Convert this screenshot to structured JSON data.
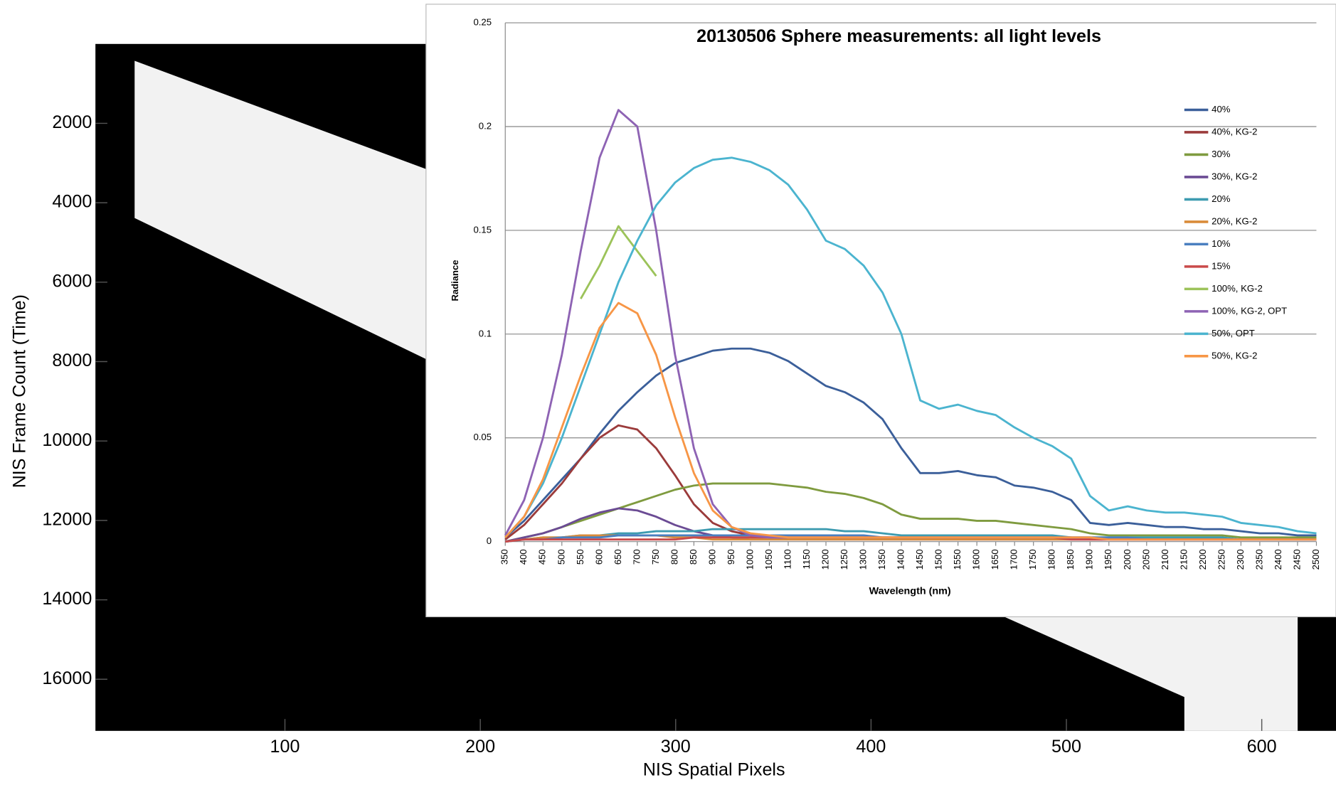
{
  "chart_data": [
    {
      "type": "image",
      "x_label": "NIS Spatial Pixels",
      "y_label": "NIS Frame Count (Time)",
      "xlim": [
        3,
        638
      ],
      "xticks": [
        100,
        200,
        300,
        400,
        500,
        600
      ],
      "ylim": [
        0,
        17300
      ],
      "yticks": [
        2000,
        4000,
        6000,
        8000,
        10000,
        12000,
        14000,
        16000
      ],
      "y_inverted": true
    },
    {
      "type": "line",
      "title": "20130506 Sphere measurements: all light levels",
      "x_label": "Wavelength (nm)",
      "y_label": "Radiance",
      "xlim": [
        350,
        2500
      ],
      "xticks": [
        350,
        400,
        450,
        500,
        550,
        600,
        650,
        700,
        750,
        800,
        850,
        900,
        950,
        1000,
        1050,
        1100,
        1150,
        1200,
        1250,
        1300,
        1350,
        1400,
        1450,
        1500,
        1550,
        1600,
        1650,
        1700,
        1750,
        1800,
        1850,
        1900,
        1950,
        2000,
        2050,
        2100,
        2150,
        2200,
        2250,
        2300,
        2350,
        2400,
        2450,
        2500
      ],
      "ylim": [
        0,
        0.25
      ],
      "yticks": [
        0,
        0.05,
        0.1,
        0.15,
        0.2,
        0.25
      ],
      "grid": true,
      "legend": "right",
      "x": [
        350,
        400,
        450,
        500,
        550,
        600,
        650,
        700,
        750,
        800,
        850,
        900,
        950,
        1000,
        1050,
        1100,
        1150,
        1200,
        1250,
        1300,
        1350,
        1400,
        1450,
        1500,
        1550,
        1600,
        1650,
        1700,
        1750,
        1800,
        1850,
        1900,
        1950,
        2000,
        2050,
        2100,
        2150,
        2200,
        2250,
        2300,
        2350,
        2400,
        2450,
        2500
      ],
      "series": [
        {
          "name": "40%",
          "color": "#3b5f9a",
          "values": [
            0.002,
            0.01,
            0.02,
            0.03,
            0.04,
            0.052,
            0.063,
            0.072,
            0.08,
            0.086,
            0.089,
            0.092,
            0.093,
            0.093,
            0.091,
            0.087,
            0.081,
            0.075,
            0.072,
            0.067,
            0.059,
            0.045,
            0.033,
            0.033,
            0.034,
            0.032,
            0.031,
            0.027,
            0.026,
            0.024,
            0.02,
            0.009,
            0.008,
            0.009,
            0.008,
            0.007,
            0.007,
            0.006,
            0.006,
            0.005,
            0.004,
            0.004,
            0.003,
            0.003
          ]
        },
        {
          "name": "40%, KG-2",
          "color": "#9b3b3b",
          "values": [
            0.001,
            0.008,
            0.018,
            0.028,
            0.04,
            0.05,
            0.056,
            0.054,
            0.045,
            0.032,
            0.018,
            0.009,
            0.005,
            0.003,
            0.002,
            0.002,
            0.002,
            0.002,
            0.002,
            0.002,
            0.002,
            0.002,
            0.002,
            0.002,
            0.002,
            0.002,
            0.002,
            0.002,
            0.002,
            0.002,
            0.002,
            0.001,
            0.001,
            0.001,
            0.001,
            0.001,
            0.001,
            0.001,
            0.001,
            0.001,
            0.001,
            0.001,
            0.001,
            0.001
          ]
        },
        {
          "name": "30%",
          "color": "#7f9b3f",
          "values": [
            0,
            0.002,
            0.004,
            0.007,
            0.01,
            0.013,
            0.016,
            0.019,
            0.022,
            0.025,
            0.027,
            0.028,
            0.028,
            0.028,
            0.028,
            0.027,
            0.026,
            0.024,
            0.023,
            0.021,
            0.018,
            0.013,
            0.011,
            0.011,
            0.011,
            0.01,
            0.01,
            0.009,
            0.008,
            0.007,
            0.006,
            0.004,
            0.003,
            0.003,
            0.003,
            0.003,
            0.003,
            0.003,
            0.003,
            0.002,
            0.002,
            0.002,
            0.002,
            0.002
          ]
        },
        {
          "name": "30%, KG-2",
          "color": "#6b4b94",
          "values": [
            0,
            0.002,
            0.004,
            0.007,
            0.011,
            0.014,
            0.016,
            0.015,
            0.012,
            0.008,
            0.005,
            0.003,
            0.002,
            0.001,
            0.001,
            0.001,
            0.001,
            0.001,
            0.001,
            0.001,
            0.001,
            0.001,
            0.001,
            0.001,
            0.001,
            0.001,
            0.001,
            0.001,
            0.001,
            0.001,
            0.001,
            0.001,
            0.001,
            0.001,
            0.001,
            0.001,
            0.001,
            0.001,
            0.001,
            0.001,
            0.001,
            0.001,
            0.001,
            0.001
          ]
        },
        {
          "name": "20%",
          "color": "#3d9bb0",
          "values": [
            0,
            0.001,
            0.002,
            0.002,
            0.003,
            0.003,
            0.004,
            0.004,
            0.005,
            0.005,
            0.005,
            0.006,
            0.006,
            0.006,
            0.006,
            0.006,
            0.006,
            0.006,
            0.005,
            0.005,
            0.004,
            0.003,
            0.003,
            0.003,
            0.003,
            0.003,
            0.003,
            0.003,
            0.003,
            0.003,
            0.002,
            0.002,
            0.002,
            0.002,
            0.002,
            0.002,
            0.002,
            0.002,
            0.002,
            0.001,
            0.001,
            0.001,
            0.001,
            0.001
          ]
        },
        {
          "name": "20%, KG-2",
          "color": "#d98b3a",
          "values": [
            0,
            0.001,
            0.002,
            0.002,
            0.003,
            0.003,
            0.003,
            0.003,
            0.003,
            0.002,
            0.002,
            0.001,
            0.001,
            0.001,
            0.001,
            0.001,
            0.001,
            0.001,
            0.001,
            0.001,
            0.001,
            0.001,
            0.001,
            0.001,
            0.001,
            0.001,
            0.001,
            0.001,
            0.001,
            0.001,
            0.001,
            0.001,
            0.001,
            0.001,
            0.001,
            0.001,
            0.001,
            0.001,
            0.001,
            0.001,
            0.001,
            0.001,
            0.001,
            0.001
          ]
        },
        {
          "name": "10%",
          "color": "#4a7fc0",
          "values": [
            0,
            0.001,
            0.001,
            0.002,
            0.002,
            0.002,
            0.003,
            0.003,
            0.003,
            0.003,
            0.003,
            0.003,
            0.003,
            0.003,
            0.003,
            0.003,
            0.003,
            0.003,
            0.003,
            0.003,
            0.002,
            0.002,
            0.002,
            0.002,
            0.002,
            0.002,
            0.002,
            0.002,
            0.002,
            0.002,
            0.002,
            0.002,
            0.002,
            0.002,
            0.001,
            0.001,
            0.001,
            0.001,
            0.001,
            0.001,
            0.001,
            0.001,
            0.001,
            0.001
          ]
        },
        {
          "name": "15%",
          "color": "#c94a4a",
          "values": [
            0,
            0.001,
            0.001,
            0.001,
            0.001,
            0.001,
            0.001,
            0.001,
            0.001,
            0.001,
            0.002,
            0.002,
            0.002,
            0.002,
            0.002,
            0.002,
            0.002,
            0.002,
            0.002,
            0.002,
            0.002,
            0.002,
            0.002,
            0.002,
            0.002,
            0.002,
            0.002,
            0.002,
            0.002,
            0.002,
            0.001,
            0.001,
            0.001,
            0.001,
            0.001,
            0.001,
            0.001,
            0.001,
            0.001,
            0.001,
            0.001,
            0.001,
            0.001,
            0.001
          ]
        },
        {
          "name": "100%, KG-2",
          "color": "#9cc35a",
          "values": [
            null,
            null,
            null,
            null,
            0.117,
            0.133,
            0.152,
            0.14,
            0.128,
            null,
            null,
            null,
            null,
            null,
            null,
            null,
            null,
            null,
            null,
            null,
            null,
            null,
            null,
            null,
            null,
            null,
            null,
            null,
            null,
            null,
            null,
            null,
            null,
            null,
            null,
            null,
            null,
            null,
            null,
            null,
            null,
            null,
            null,
            null
          ]
        },
        {
          "name": "100%, KG-2, OPT",
          "color": "#8e63b4",
          "values": [
            0.003,
            0.02,
            0.05,
            0.09,
            0.14,
            0.185,
            0.208,
            0.2,
            0.15,
            0.09,
            0.045,
            0.018,
            0.007,
            0.003,
            0.002,
            0.002,
            0.002,
            0.002,
            0.002,
            0.002,
            0.002,
            0.002,
            0.002,
            0.002,
            0.002,
            0.002,
            0.002,
            0.002,
            0.002,
            0.002,
            0.002,
            0.002,
            0.001,
            0.001,
            0.001,
            0.001,
            0.001,
            0.001,
            0.001,
            0.001,
            0.001,
            0.001,
            0.001,
            0.001
          ]
        },
        {
          "name": "50%, OPT",
          "color": "#4bb4cf",
          "values": [
            0.002,
            0.012,
            0.028,
            0.05,
            0.075,
            0.1,
            0.125,
            0.145,
            0.162,
            0.173,
            0.18,
            0.184,
            0.185,
            0.183,
            0.179,
            0.172,
            0.16,
            0.145,
            0.141,
            0.133,
            0.12,
            0.1,
            0.068,
            0.064,
            0.066,
            0.063,
            0.061,
            0.055,
            0.05,
            0.046,
            0.04,
            0.022,
            0.015,
            0.017,
            0.015,
            0.014,
            0.014,
            0.013,
            0.012,
            0.009,
            0.008,
            0.007,
            0.005,
            0.004
          ]
        },
        {
          "name": "50%, KG-2",
          "color": "#f79646",
          "values": [
            0.002,
            0.012,
            0.03,
            0.055,
            0.08,
            0.103,
            0.115,
            0.11,
            0.09,
            0.06,
            0.033,
            0.015,
            0.007,
            0.004,
            0.003,
            0.002,
            0.002,
            0.002,
            0.002,
            0.002,
            0.002,
            0.002,
            0.002,
            0.002,
            0.002,
            0.002,
            0.002,
            0.002,
            0.002,
            0.002,
            0.002,
            0.002,
            0.001,
            0.001,
            0.001,
            0.001,
            0.001,
            0.001,
            0.001,
            0.001,
            0.001,
            0.001,
            0.001,
            0.001
          ]
        }
      ]
    }
  ]
}
